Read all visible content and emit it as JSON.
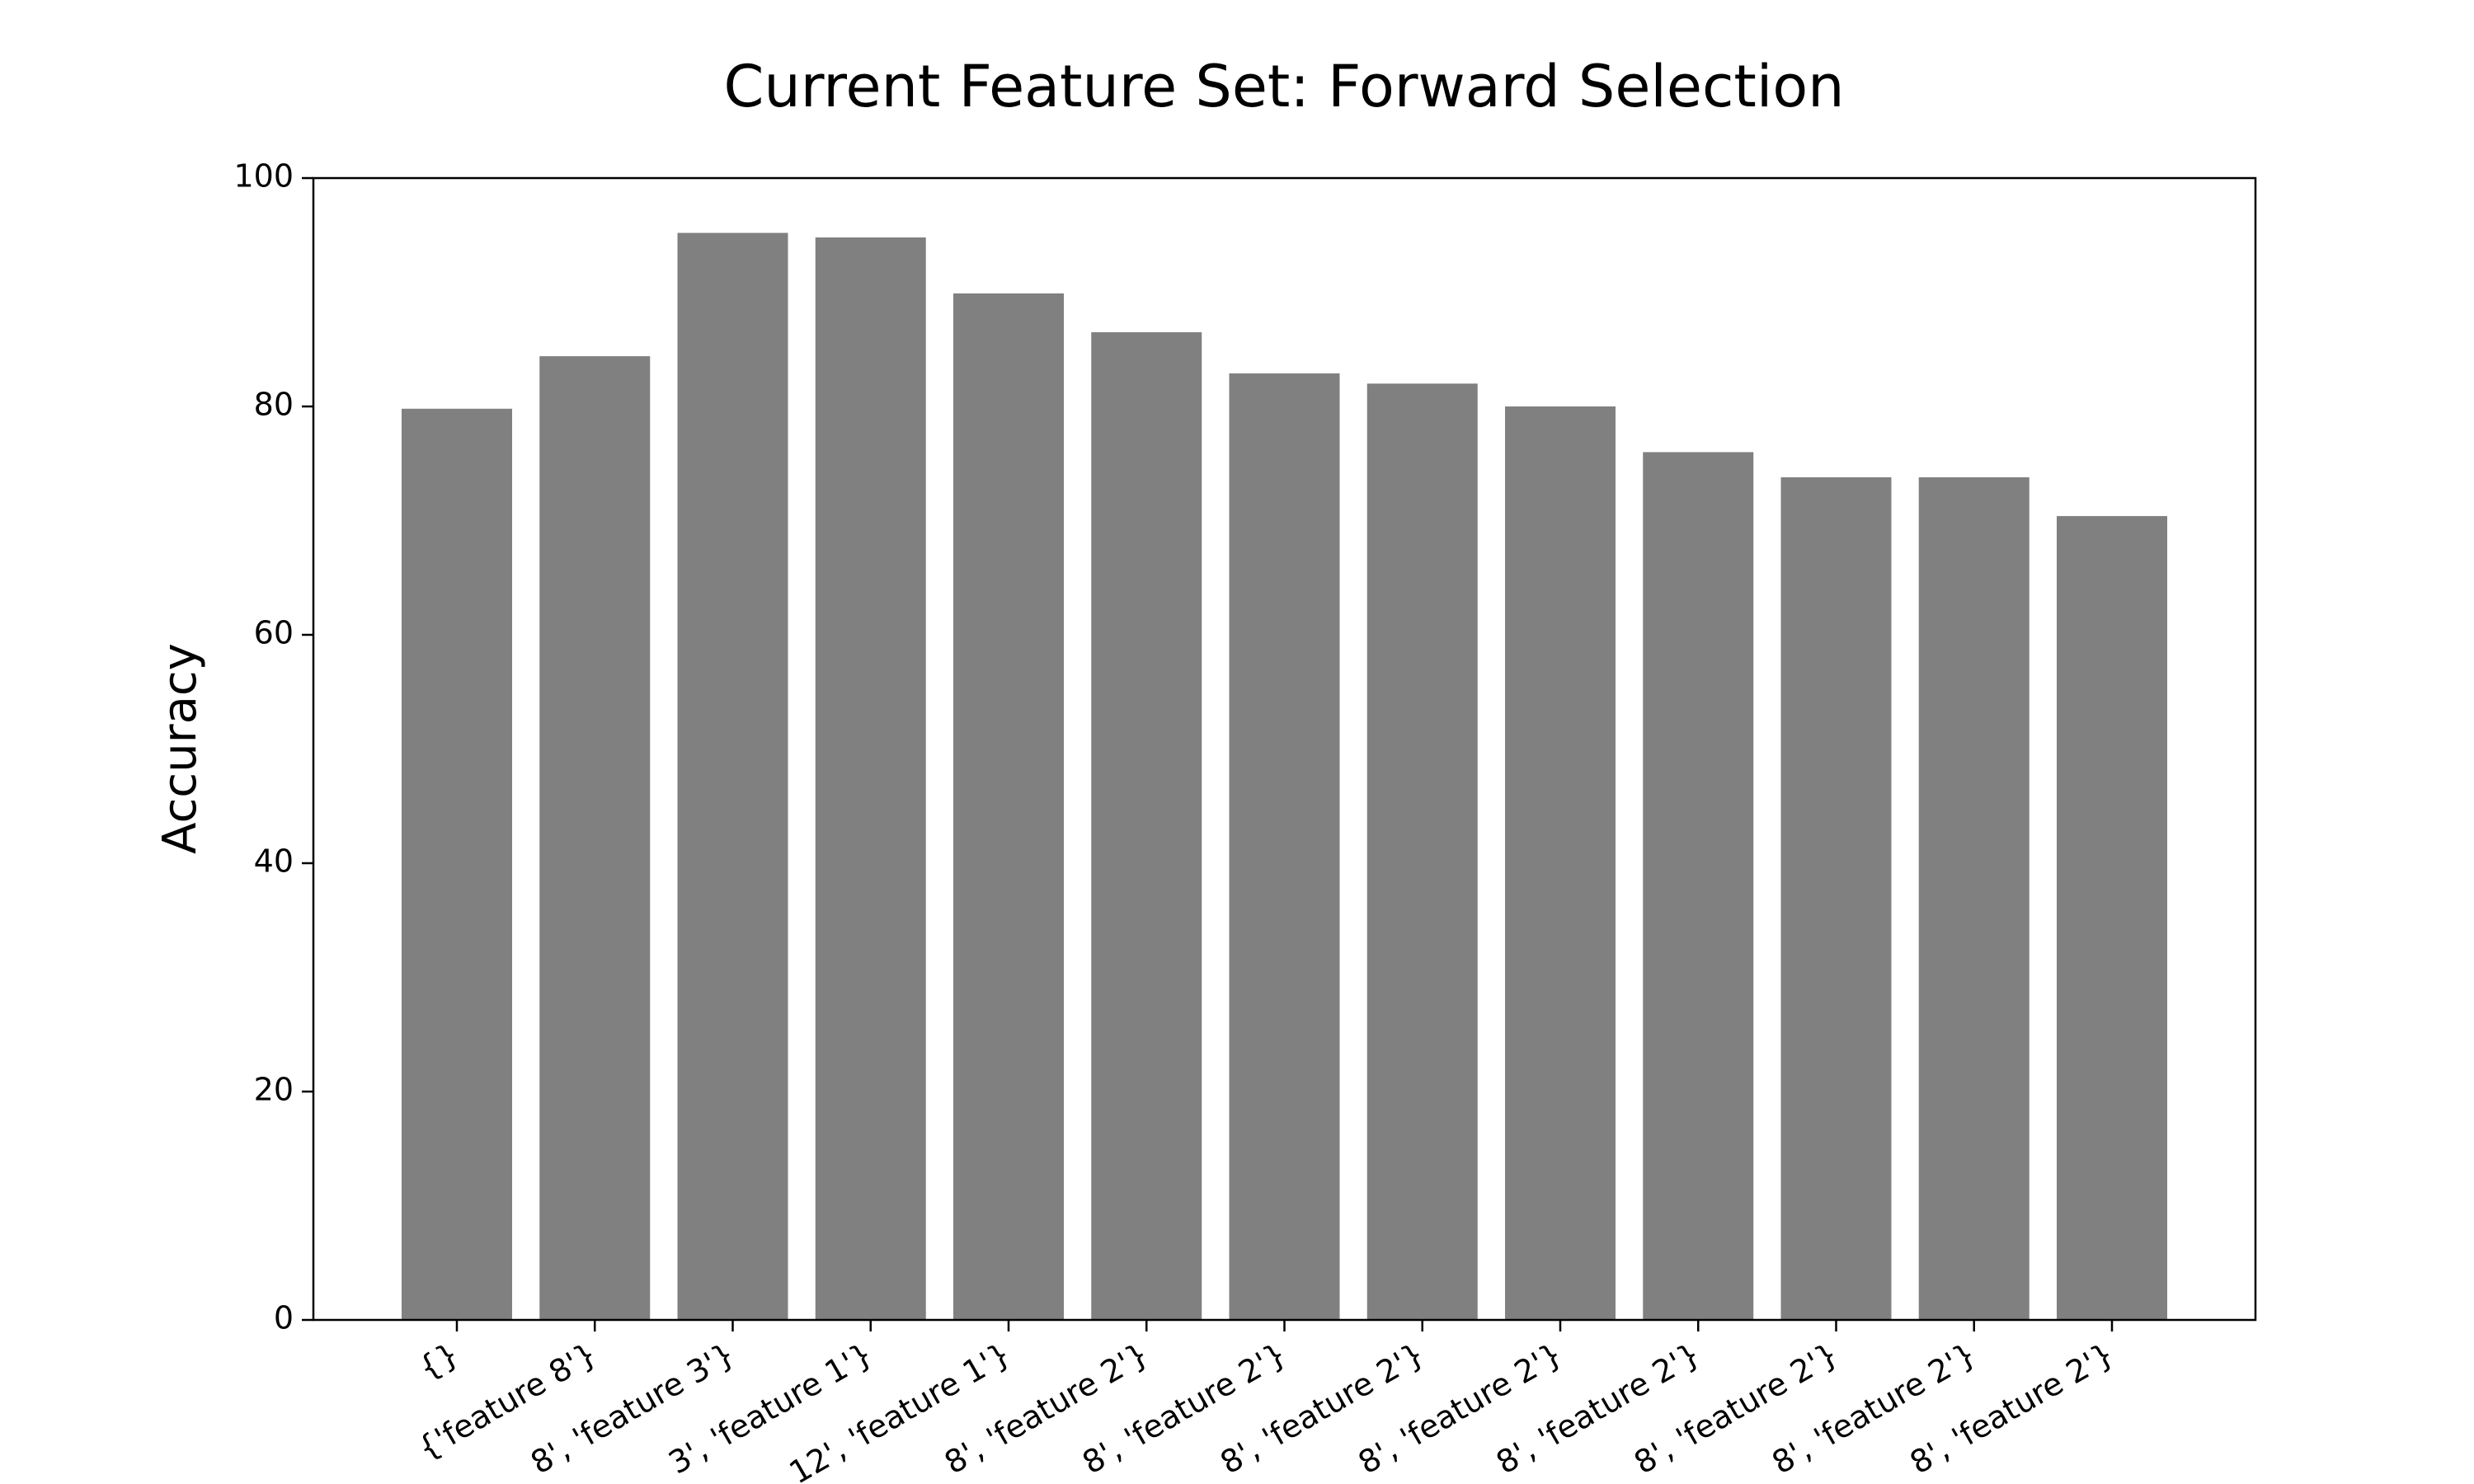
{
  "chart_data": {
    "type": "bar",
    "title": "Current Feature Set: Forward Selection",
    "y_label": "Accuracy",
    "categories": [
      "{}",
      "{'feature 8'}",
      "8', 'feature 3'}",
      "3', 'feature 1'}",
      "12', 'feature 1'}",
      "8', 'feature 2'}",
      "8', 'feature 2'}",
      "8', 'feature 2'}",
      "8', 'feature 2'}",
      "8', 'feature 2'}",
      "8', 'feature 2'}",
      "8', 'feature 2'}",
      "8', 'feature 2'}"
    ],
    "values": [
      79.8,
      84.4,
      95.2,
      94.8,
      89.9,
      86.5,
      82.9,
      82.0,
      80.0,
      76.0,
      73.8,
      73.8,
      70.4
    ],
    "color": "#808080",
    "ylim": [
      0,
      100
    ],
    "yticks": [
      0,
      20,
      40,
      60,
      80,
      100
    ],
    "grid": false
  }
}
